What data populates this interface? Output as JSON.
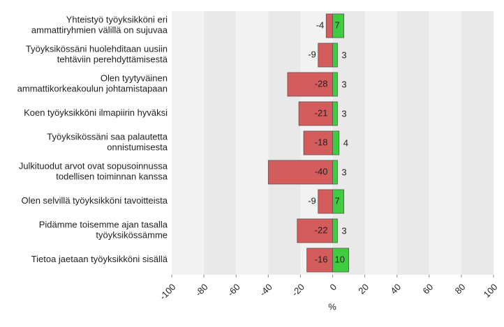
{
  "chart_data": {
    "type": "diverging-bar",
    "categories": [
      "Yhteistyö työyksikköni eri\nammattiryhmien välillä on sujuvaa",
      "Työyksikössäni huolehditaan uusiin\ntehtäviin perehdyttämisestä",
      "Olen tyytyväinen\nammattikorkeakoulun johtamistapaan",
      "Koen työyksikköni ilmapiirin hyväksi",
      "Työyksikössäni saa palautetta\nonnistumisesta",
      "Julkituodut arvot ovat sopusoinnussa\ntodellisen toiminnan kanssa",
      "Olen selvillä työyksikköni tavoitteista",
      "Pidämme toisemme ajan tasalla\ntyöyksikössämme",
      "Tietoa jaetaan työyksikköni sisällä"
    ],
    "series": [
      {
        "color": "#d45c5c",
        "values": [
          -4,
          -9,
          -28,
          -21,
          -18,
          -40,
          -9,
          -22,
          -16
        ]
      },
      {
        "color": "#3fcc3f",
        "values": [
          7,
          3,
          3,
          3,
          4,
          3,
          7,
          3,
          10
        ]
      }
    ],
    "xlabel": "%",
    "xlim": [
      -100,
      100
    ],
    "xticks": [
      -100,
      -80,
      -60,
      -40,
      -20,
      0,
      20,
      40,
      60,
      80,
      100
    ]
  }
}
